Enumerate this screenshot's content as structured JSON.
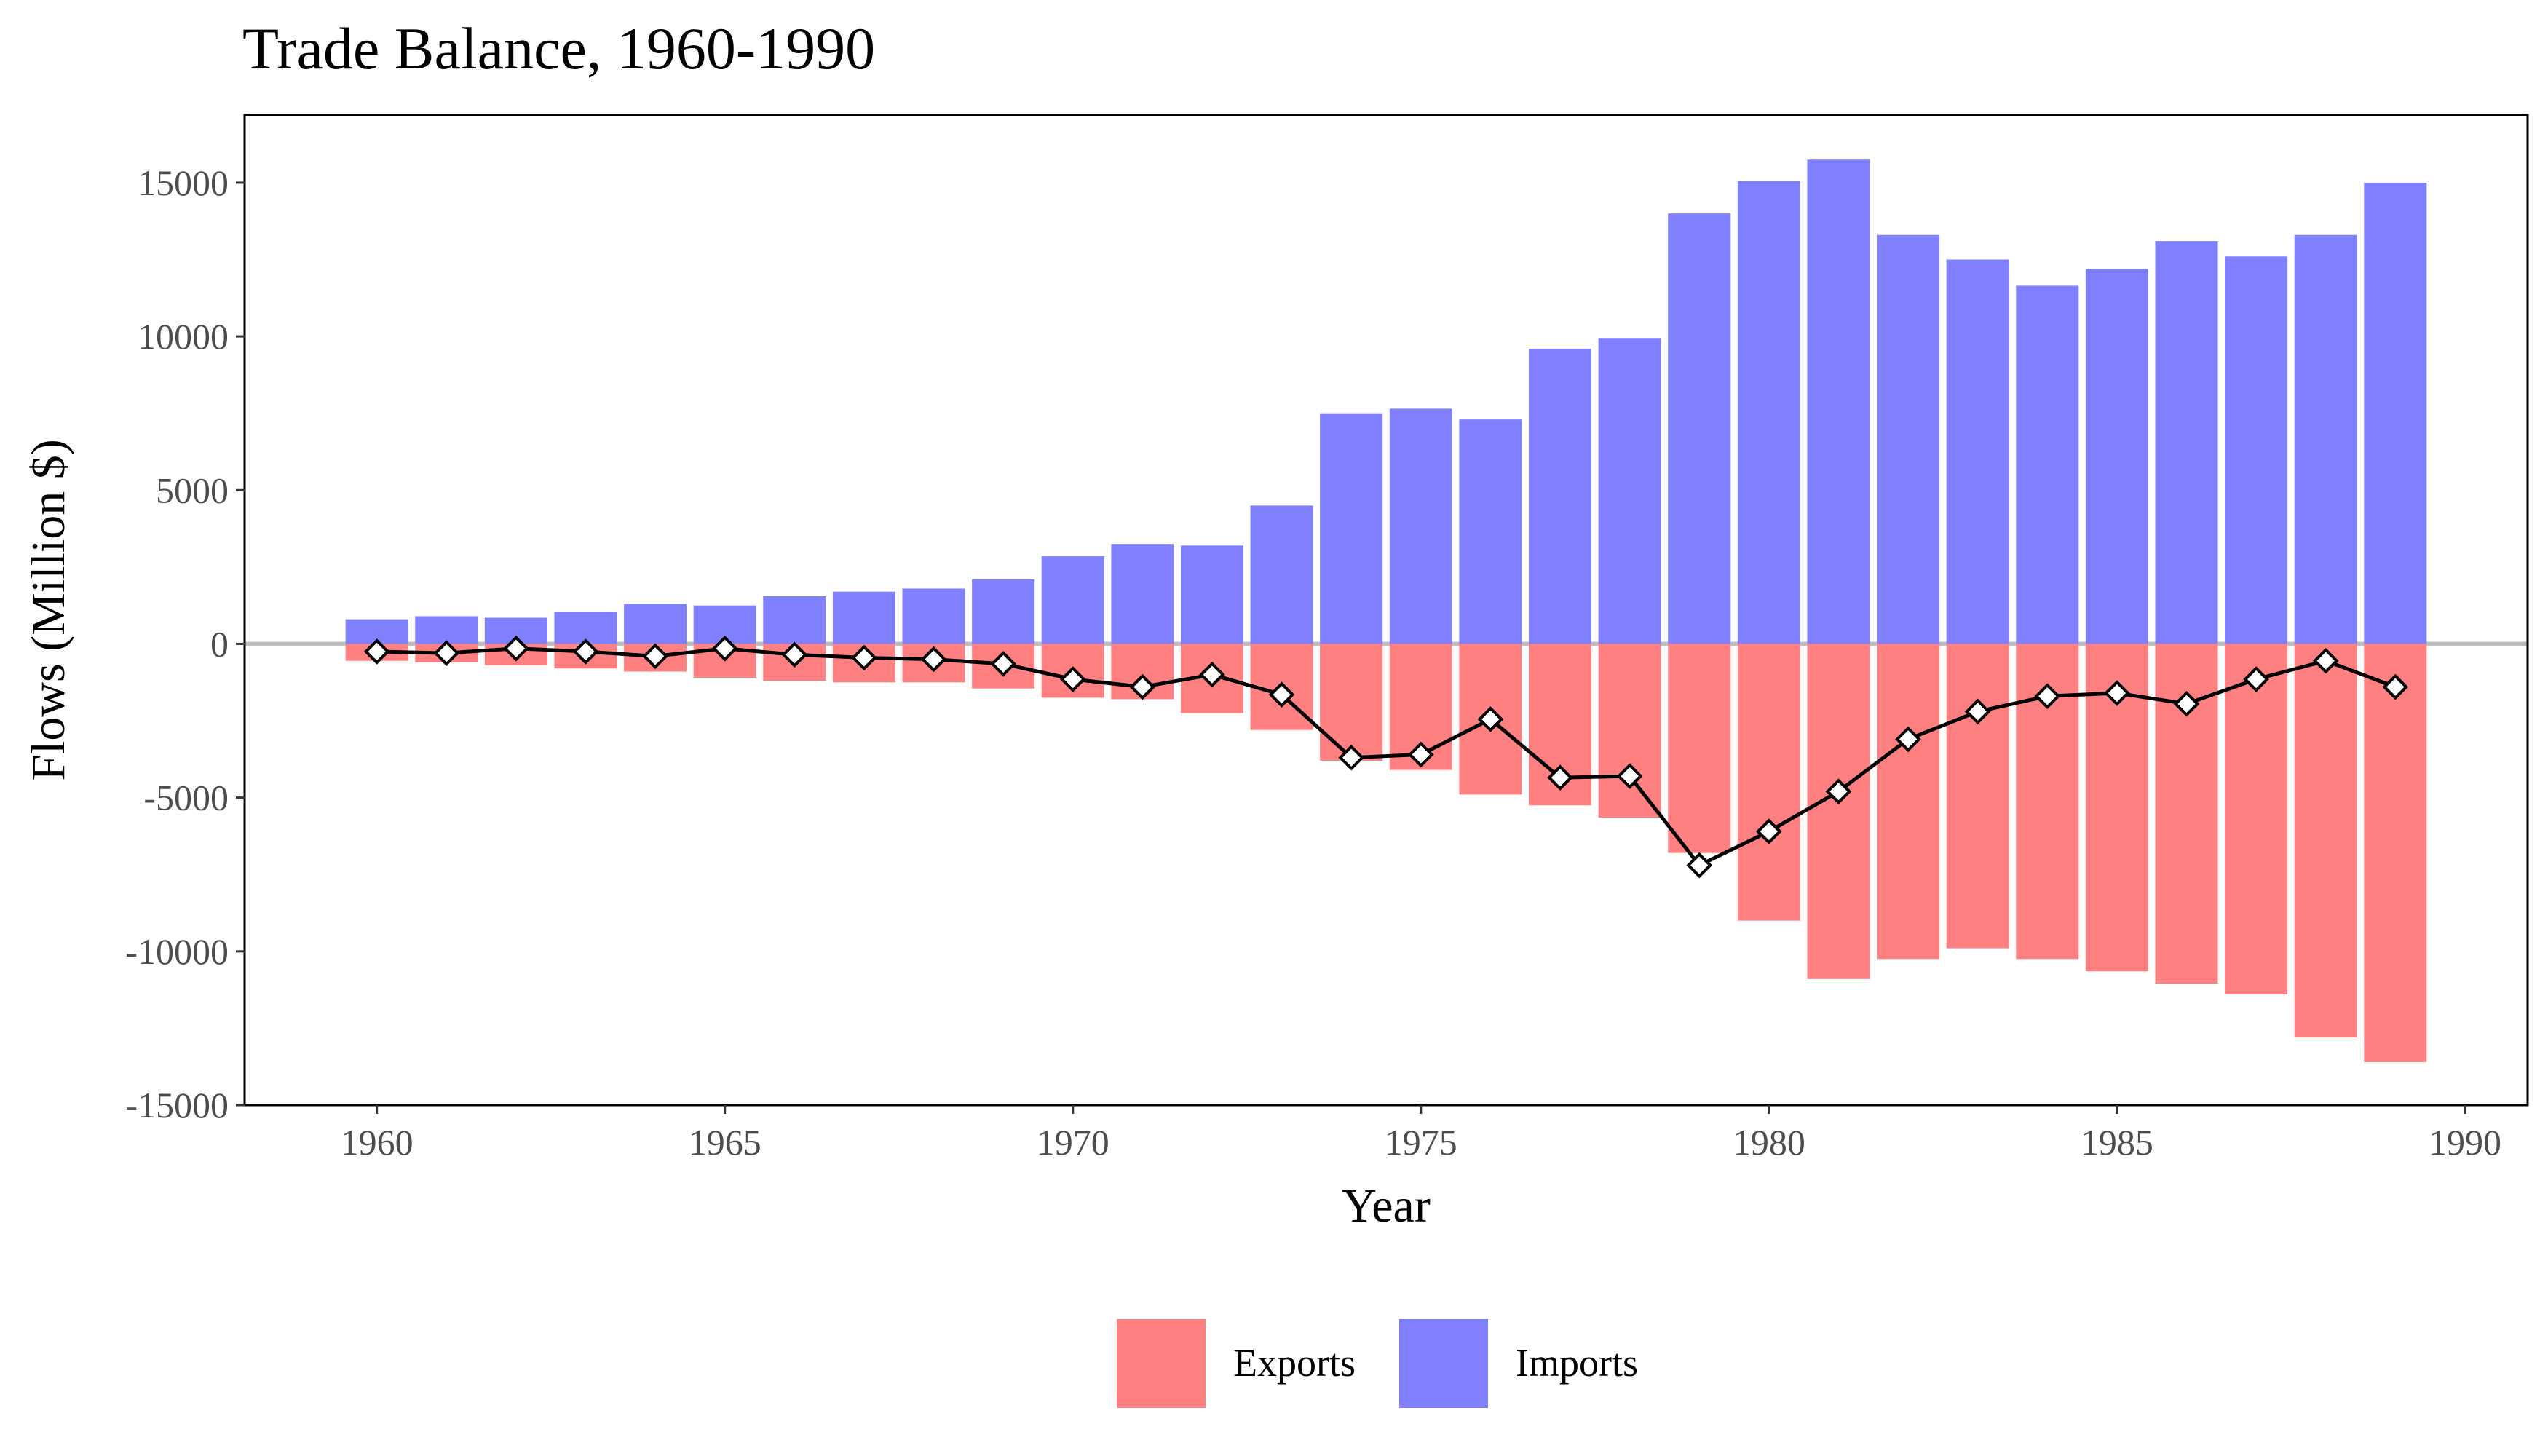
{
  "chart_data": {
    "type": "bar",
    "title": "Trade Balance, 1960-1990",
    "xlabel": "Year",
    "ylabel": "Flows (Million $)",
    "xlim": [
      1958.1,
      1990.9
    ],
    "ylim": [
      -15000,
      17200
    ],
    "x_ticks": [
      1960,
      1965,
      1970,
      1975,
      1980,
      1985,
      1990
    ],
    "y_ticks": [
      -15000,
      -10000,
      -5000,
      0,
      5000,
      10000,
      15000
    ],
    "grid": false,
    "legend_position": "bottom",
    "colors": {
      "exports": "#ff8080",
      "imports": "#8080ff",
      "balance": "#000000",
      "zero_line": "#bebebe"
    },
    "x": [
      1960,
      1961,
      1962,
      1963,
      1964,
      1965,
      1966,
      1967,
      1968,
      1969,
      1970,
      1971,
      1972,
      1973,
      1974,
      1975,
      1976,
      1977,
      1978,
      1979,
      1980,
      1981,
      1982,
      1983,
      1984,
      1985,
      1986,
      1987,
      1988,
      1989
    ],
    "series": [
      {
        "name": "Exports",
        "kind": "bar",
        "values": [
          -550,
          -600,
          -700,
          -800,
          -900,
          -1100,
          -1200,
          -1250,
          -1250,
          -1450,
          -1750,
          -1800,
          -2250,
          -2800,
          -3800,
          -4100,
          -4900,
          -5250,
          -5650,
          -6800,
          -9000,
          -10900,
          -10250,
          -9900,
          -10250,
          -10650,
          -11050,
          -11400,
          -12800,
          -13600
        ]
      },
      {
        "name": "Imports",
        "kind": "bar",
        "values": [
          800,
          900,
          850,
          1050,
          1300,
          1250,
          1550,
          1700,
          1800,
          2100,
          2850,
          3250,
          3200,
          4500,
          7500,
          7650,
          7300,
          9600,
          9950,
          14000,
          15050,
          15750,
          13300,
          12500,
          11650,
          12200,
          13100,
          12600,
          13300,
          15000
        ]
      },
      {
        "kind": "line",
        "marker": "diamond",
        "values": [
          -250,
          -300,
          -150,
          -250,
          -400,
          -150,
          -350,
          -450,
          -500,
          -650,
          -1150,
          -1400,
          -1000,
          -1650,
          -3700,
          -3600,
          -2450,
          -4350,
          -4300,
          -7200,
          -6100,
          -4800,
          -3100,
          -2200,
          -1700,
          -1600,
          -1950,
          -1150,
          -550,
          -1400
        ]
      }
    ]
  }
}
